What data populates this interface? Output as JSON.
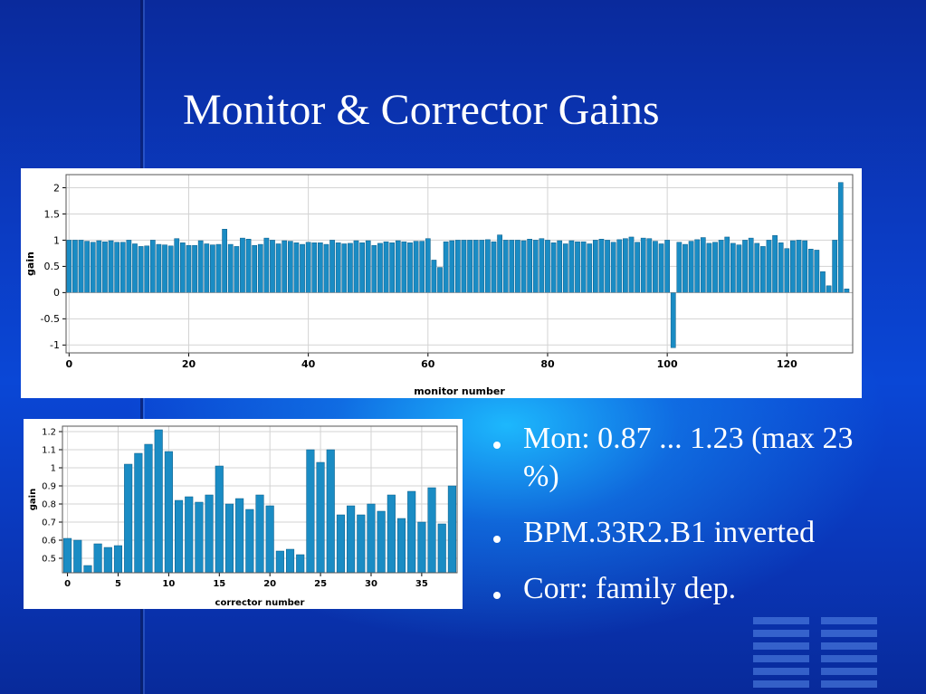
{
  "slide": {
    "title": "Monitor & Corrector Gains",
    "bullets": [
      "Mon: 0.87 ... 1.23 (max 23 %)",
      "BPM.33R2.B1 inverted",
      "Corr: family dep."
    ]
  },
  "colors": {
    "bar": "#1a8cc4",
    "bar_edge": "#0a5a86",
    "grid": "#d3d3d3",
    "background_top": "#0a2a9c",
    "accent": "#1ebeff"
  },
  "chart_data": [
    {
      "type": "bar",
      "xlabel": "monitor number",
      "ylabel": "gain",
      "xlim": [
        -0.5,
        131
      ],
      "ylim": [
        -1.15,
        2.25
      ],
      "xticks": [
        0,
        20,
        40,
        60,
        80,
        100,
        120
      ],
      "yticks": [
        -1,
        -0.5,
        0,
        0.5,
        1,
        1.5,
        2
      ],
      "ytick_labels": [
        "-1",
        "-0.5",
        "0",
        "0.5",
        "1",
        "1.5",
        "2"
      ],
      "grid": true,
      "values": [
        1.0,
        1.0,
        1.0,
        0.98,
        0.96,
        0.99,
        0.97,
        0.99,
        0.96,
        0.96,
        1.0,
        0.93,
        0.88,
        0.89,
        1.0,
        0.92,
        0.91,
        0.89,
        1.03,
        0.95,
        0.9,
        0.9,
        0.99,
        0.93,
        0.91,
        0.92,
        1.21,
        0.92,
        0.88,
        1.04,
        1.02,
        0.9,
        0.92,
        1.04,
        1.0,
        0.93,
        0.99,
        0.98,
        0.95,
        0.92,
        0.96,
        0.95,
        0.95,
        0.92,
        1.0,
        0.95,
        0.93,
        0.94,
        0.99,
        0.95,
        0.99,
        0.9,
        0.94,
        0.97,
        0.95,
        0.99,
        0.97,
        0.95,
        0.98,
        0.98,
        1.03,
        0.62,
        0.48,
        0.97,
        0.99,
        1.0,
        1.0,
        1.0,
        1.0,
        1.0,
        1.01,
        0.97,
        1.1,
        1.0,
        1.0,
        1.0,
        0.99,
        1.02,
        1.0,
        1.03,
        1.0,
        0.95,
        0.99,
        0.93,
        0.99,
        0.97,
        0.97,
        0.93,
        1.0,
        1.02,
        1.0,
        0.96,
        1.01,
        1.03,
        1.06,
        0.96,
        1.04,
        1.03,
        0.98,
        0.93,
        1.0,
        -1.05,
        0.96,
        0.92,
        0.98,
        1.01,
        1.05,
        0.94,
        0.96,
        1.0,
        1.06,
        0.94,
        0.91,
        1.0,
        1.04,
        0.94,
        0.88,
        1.0,
        1.09,
        0.95,
        0.84,
        0.99,
        1.0,
        0.99,
        0.83,
        0.81,
        0.4,
        0.13,
        1.0,
        2.1,
        0.07
      ]
    },
    {
      "type": "bar",
      "xlabel": "corrector number",
      "ylabel": "gain",
      "xlim": [
        -0.5,
        38.5
      ],
      "ylim": [
        0.42,
        1.23
      ],
      "xticks": [
        0,
        5,
        10,
        15,
        20,
        25,
        30,
        35
      ],
      "yticks": [
        0.5,
        0.6,
        0.7,
        0.8,
        0.9,
        1.0,
        1.1,
        1.2
      ],
      "ytick_labels": [
        "0.5",
        "0.6",
        "0.7",
        "0.8",
        "0.9",
        "1",
        "1.1",
        "1.2"
      ],
      "grid": true,
      "values": [
        0.61,
        0.6,
        0.46,
        0.58,
        0.56,
        0.57,
        1.02,
        1.08,
        1.13,
        1.21,
        1.09,
        0.82,
        0.84,
        0.81,
        0.85,
        1.01,
        0.8,
        0.83,
        0.77,
        0.85,
        0.79,
        0.54,
        0.55,
        0.52,
        1.1,
        1.03,
        1.1,
        0.74,
        0.79,
        0.74,
        0.8,
        0.76,
        0.85,
        0.72,
        0.87,
        0.7,
        0.89,
        0.69,
        0.9
      ]
    }
  ]
}
